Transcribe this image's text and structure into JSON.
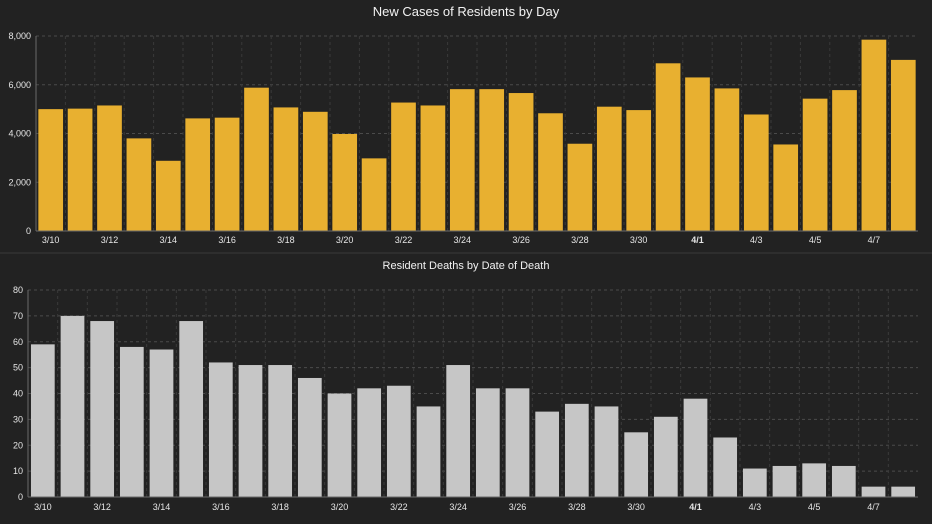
{
  "chart_data": [
    {
      "type": "bar",
      "title": "New Cases of Residents by Day",
      "xlabel": "",
      "ylabel": "",
      "categories": [
        "3/10",
        "3/11",
        "3/12",
        "3/13",
        "3/14",
        "3/15",
        "3/16",
        "3/17",
        "3/18",
        "3/19",
        "3/20",
        "3/21",
        "3/22",
        "3/23",
        "3/24",
        "3/25",
        "3/26",
        "3/27",
        "3/28",
        "3/29",
        "3/30",
        "3/31",
        "4/1",
        "4/2",
        "4/3",
        "4/4",
        "4/5",
        "4/6",
        "4/7",
        "4/8"
      ],
      "values": [
        5000,
        5020,
        5150,
        3800,
        2880,
        4620,
        4650,
        5880,
        5070,
        4890,
        3980,
        2980,
        5270,
        5150,
        5820,
        5820,
        5660,
        4830,
        3580,
        5100,
        4960,
        6880,
        6300,
        5850,
        4780,
        3550,
        5430,
        5780,
        7850,
        7020
      ],
      "tick_labels": [
        "3/10",
        "3/12",
        "3/14",
        "3/16",
        "3/18",
        "3/20",
        "3/22",
        "3/24",
        "3/26",
        "3/28",
        "3/30",
        "4/1",
        "4/3",
        "4/5",
        "4/7"
      ],
      "bold_tick": "4/1",
      "ylim": [
        0,
        8000
      ],
      "yticks": [
        "0",
        "2,000",
        "4,000",
        "6,000",
        "8,000"
      ],
      "ytick_values": [
        0,
        2000,
        4000,
        6000,
        8000
      ],
      "bar_color": "#e8b030",
      "grid": true
    },
    {
      "type": "bar",
      "title": "Resident Deaths by Date of Death",
      "xlabel": "",
      "ylabel": "",
      "categories": [
        "3/10",
        "3/11",
        "3/12",
        "3/13",
        "3/14",
        "3/15",
        "3/16",
        "3/17",
        "3/18",
        "3/19",
        "3/20",
        "3/21",
        "3/22",
        "3/23",
        "3/24",
        "3/25",
        "3/26",
        "3/27",
        "3/28",
        "3/29",
        "3/30",
        "3/31",
        "4/1",
        "4/2",
        "4/3",
        "4/4",
        "4/5",
        "4/6",
        "4/7",
        "4/8"
      ],
      "values": [
        59,
        70,
        68,
        58,
        57,
        68,
        52,
        51,
        51,
        46,
        40,
        42,
        43,
        35,
        51,
        42,
        42,
        33,
        36,
        35,
        25,
        31,
        38,
        23,
        11,
        12,
        13,
        12,
        4,
        4
      ],
      "tick_labels": [
        "3/10",
        "3/12",
        "3/14",
        "3/16",
        "3/18",
        "3/20",
        "3/22",
        "3/24",
        "3/26",
        "3/28",
        "3/30",
        "4/1",
        "4/3",
        "4/5",
        "4/7"
      ],
      "bold_tick": "4/1",
      "ylim": [
        0,
        80
      ],
      "yticks": [
        "0",
        "10",
        "20",
        "30",
        "40",
        "50",
        "60",
        "70",
        "80"
      ],
      "ytick_values": [
        0,
        10,
        20,
        30,
        40,
        50,
        60,
        70,
        80
      ],
      "bar_color": "#c6c6c6",
      "grid": true
    }
  ],
  "background_color": "#222222"
}
